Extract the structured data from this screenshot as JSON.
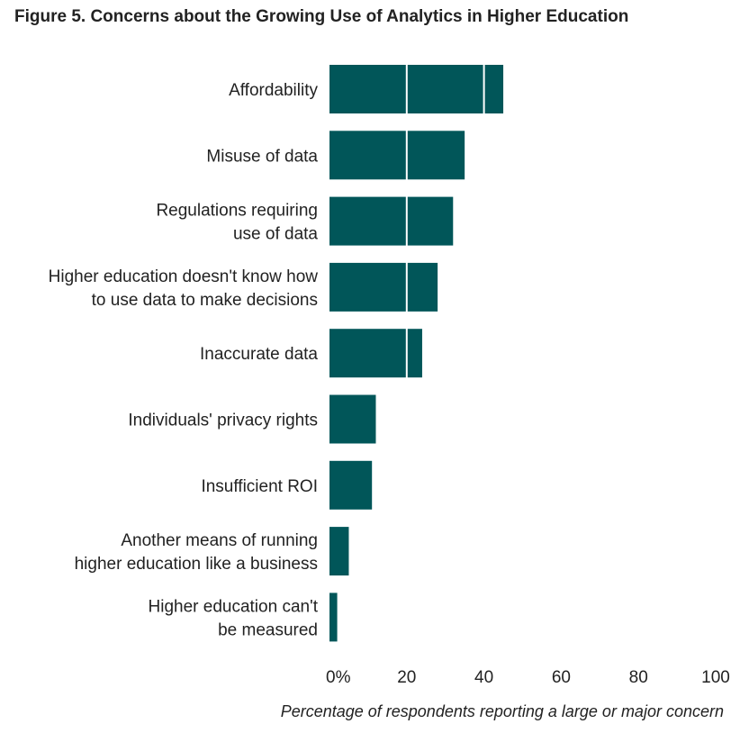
{
  "title": "Figure 5. Concerns about the Growing Use of Analytics in Higher Education",
  "chart_data": {
    "type": "bar",
    "orientation": "horizontal",
    "categories": [
      [
        "Affordability"
      ],
      [
        "Misuse of data"
      ],
      [
        "Regulations requiring",
        "use of data"
      ],
      [
        "Higher education doesn't know how",
        "to use data to make decisions"
      ],
      [
        "Inaccurate data"
      ],
      [
        "Individuals' privacy rights"
      ],
      [
        "Insufficient ROI"
      ],
      [
        "Another means of running",
        "higher education like a business"
      ],
      [
        "Higher education can't",
        "be measured"
      ]
    ],
    "values": [
      45,
      35,
      32,
      28,
      24,
      12,
      11,
      5,
      2
    ],
    "xlim": [
      0,
      100
    ],
    "xticks": [
      "0%",
      "20",
      "40",
      "60",
      "80",
      "100"
    ],
    "xlabel": "Percentage of respondents reporting a large or major concern",
    "grid": true,
    "bar_color": "#015659",
    "grid_color": "#ffffff"
  }
}
